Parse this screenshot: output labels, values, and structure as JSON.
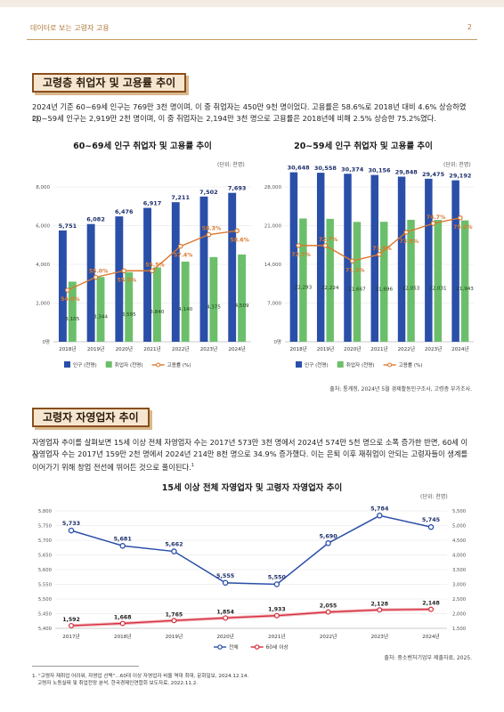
{
  "header": {
    "title": "데이터로 보는 고령자 고용",
    "page": "2"
  },
  "section1": {
    "title": "고령층 취업자 및 고용률 추이",
    "para1": "2024년 기준 60~69세 인구는 769만 3천 명이며, 이 중 취업자는 450만 9천 명이었다. 고용률은 58.6%로 2018년 대비 4.6% 상승하였다.",
    "para2": "20~59세 인구는 2,919만 2천 명이며, 이 중 취업자는 2,194만 3천 명으로 고용률은 2018년에 비해 2.5% 상승한 75.2%였다.",
    "source": "출처: 통계청, 2024년 5월 경제활동인구조사, 고령층 부가조사."
  },
  "section2": {
    "title": "고령자 자영업자 추이",
    "para1": "자영업자 추이를 살펴보면 15세 이상 전체 자영업자 수는 2017년 573만 3천 명에서 2024년 574만 5천 명으로 소폭 증가한 반면, 60세 이상",
    "para2": "자영업자 수는 2017년 159만 2천 명에서 2024년 214만 8천 명으로 34.9% 증가했다. 이는 은퇴 이후 재취업이 안되는 고령자들이 생계를",
    "para3": "이어가기 위해 창업 전선에 뛰어든 것으로 풀이된다.",
    "footnote_mark": "1",
    "source": "출처: 중소벤처기업부 제출자료, 2025."
  },
  "footnote": {
    "line1": "1. \"고령자 재취업 어려워, 자영업 선택\"…60대 이상 자영업자 비율 역대 최대, 문화일보, 2024.12.14.",
    "line2": "고령자 노동실태 및 취업전망 분석, 한국경제인연합회 보도자료, 2022.11.2."
  },
  "colors": {
    "population": "#2a4fa8",
    "employed": "#6cbf6a",
    "rate": "#d9772e",
    "total": "#2a4fa8",
    "over60": "#d42a3a"
  },
  "chart_data": [
    {
      "type": "bar",
      "title": "60~69세 인구 취업자 및 고용률 추이",
      "unit": "(단위: 천명)",
      "categories": [
        "2018년",
        "2019년",
        "2020년",
        "2021년",
        "2022년",
        "2023년",
        "2024년"
      ],
      "series": [
        {
          "name": "인구 (천명)",
          "values": [
            5751,
            6082,
            6476,
            6917,
            7211,
            7502,
            7693
          ],
          "labels": [
            "5,751",
            "6,082",
            "6,476",
            "6,917",
            "7,211",
            "7,502",
            "7,693"
          ]
        },
        {
          "name": "취업자 (천명)",
          "values": [
            3105,
            3344,
            3595,
            3840,
            4140,
            4375,
            4509
          ],
          "labels": [
            "3,105",
            "3,344",
            "3,595",
            "3,840",
            "4,140",
            "4,375",
            "4,509"
          ]
        },
        {
          "name": "고용률 (%)",
          "type": "line",
          "values": [
            54.0,
            55.0,
            55.5,
            55.5,
            57.4,
            58.3,
            58.6
          ],
          "labels": [
            "54.0%",
            "55.0%",
            "55.5%",
            "55.5%",
            "57.4%",
            "58.3%",
            "58.6%"
          ]
        }
      ],
      "yticks": [
        "0명",
        "2,000",
        "4,000",
        "6,000",
        "8,000"
      ],
      "ylim": [
        0,
        8000
      ],
      "rate_lim": [
        50,
        62
      ]
    },
    {
      "type": "bar",
      "title": "20~59세 인구 취업자 및 고용률 추이",
      "unit": "(단위: 천명)",
      "categories": [
        "2018년",
        "2019년",
        "2020년",
        "2021년",
        "2022년",
        "2023년",
        "2024년"
      ],
      "series": [
        {
          "name": "인구 (천명)",
          "values": [
            30648,
            30558,
            30374,
            30156,
            29848,
            29475,
            29192
          ],
          "labels": [
            "30,648",
            "30,558",
            "30,374",
            "30,156",
            "29,848",
            "29,475",
            "29,192"
          ]
        },
        {
          "name": "취업자 (천명)",
          "values": [
            22293,
            22224,
            21667,
            21696,
            22053,
            22031,
            21943
          ],
          "labels": [
            "22,293",
            "22,224",
            "21,667",
            "21,696",
            "22,053",
            "22,031",
            "21,943"
          ]
        },
        {
          "name": "고용률 (%)",
          "type": "line",
          "values": [
            72.7,
            72.7,
            71.3,
            71.9,
            73.9,
            74.7,
            75.2
          ],
          "labels": [
            "72.7%",
            "72.7%",
            "71.3%",
            "71.9%",
            "73.9%",
            "74.7%",
            "75.2%"
          ]
        }
      ],
      "yticks": [
        "0명",
        "7,000",
        "14,000",
        "21,000",
        "28,000"
      ],
      "ylim": [
        0,
        28000
      ],
      "rate_lim": [
        64,
        78
      ]
    },
    {
      "type": "line",
      "title": "15세 이상 전체 자영업자 및 고령자 자영업자 추이",
      "unit": "(단위: 천명)",
      "categories": [
        "2017년",
        "2018년",
        "2019년",
        "2020년",
        "2021년",
        "2022년",
        "2023년",
        "2024년"
      ],
      "series": [
        {
          "name": "전체",
          "axis": "left",
          "values": [
            5733,
            5681,
            5662,
            5555,
            5550,
            5690,
            5784,
            5745
          ],
          "labels": [
            "5,733",
            "5,681",
            "5,662",
            "5,555",
            "5,550",
            "5,690",
            "5,784",
            "5,745"
          ]
        },
        {
          "name": "60세 이상",
          "axis": "right",
          "values": [
            1592,
            1668,
            1765,
            1854,
            1933,
            2055,
            2128,
            2148
          ],
          "labels": [
            "1,592",
            "1,668",
            "1,765",
            "1,854",
            "1,933",
            "2,055",
            "2,128",
            "2,148"
          ]
        }
      ],
      "left_ticks": [
        "5,400",
        "5,450",
        "5,500",
        "5,550",
        "5,600",
        "5,650",
        "5,700",
        "5,750",
        "5,800"
      ],
      "left_lim": [
        5400,
        5800
      ],
      "right_ticks": [
        "1,500",
        "2,000",
        "2,500",
        "3,000",
        "3,500",
        "4,000",
        "4,500",
        "5,000",
        "5,500"
      ],
      "right_lim": [
        1500,
        5500
      ]
    }
  ]
}
